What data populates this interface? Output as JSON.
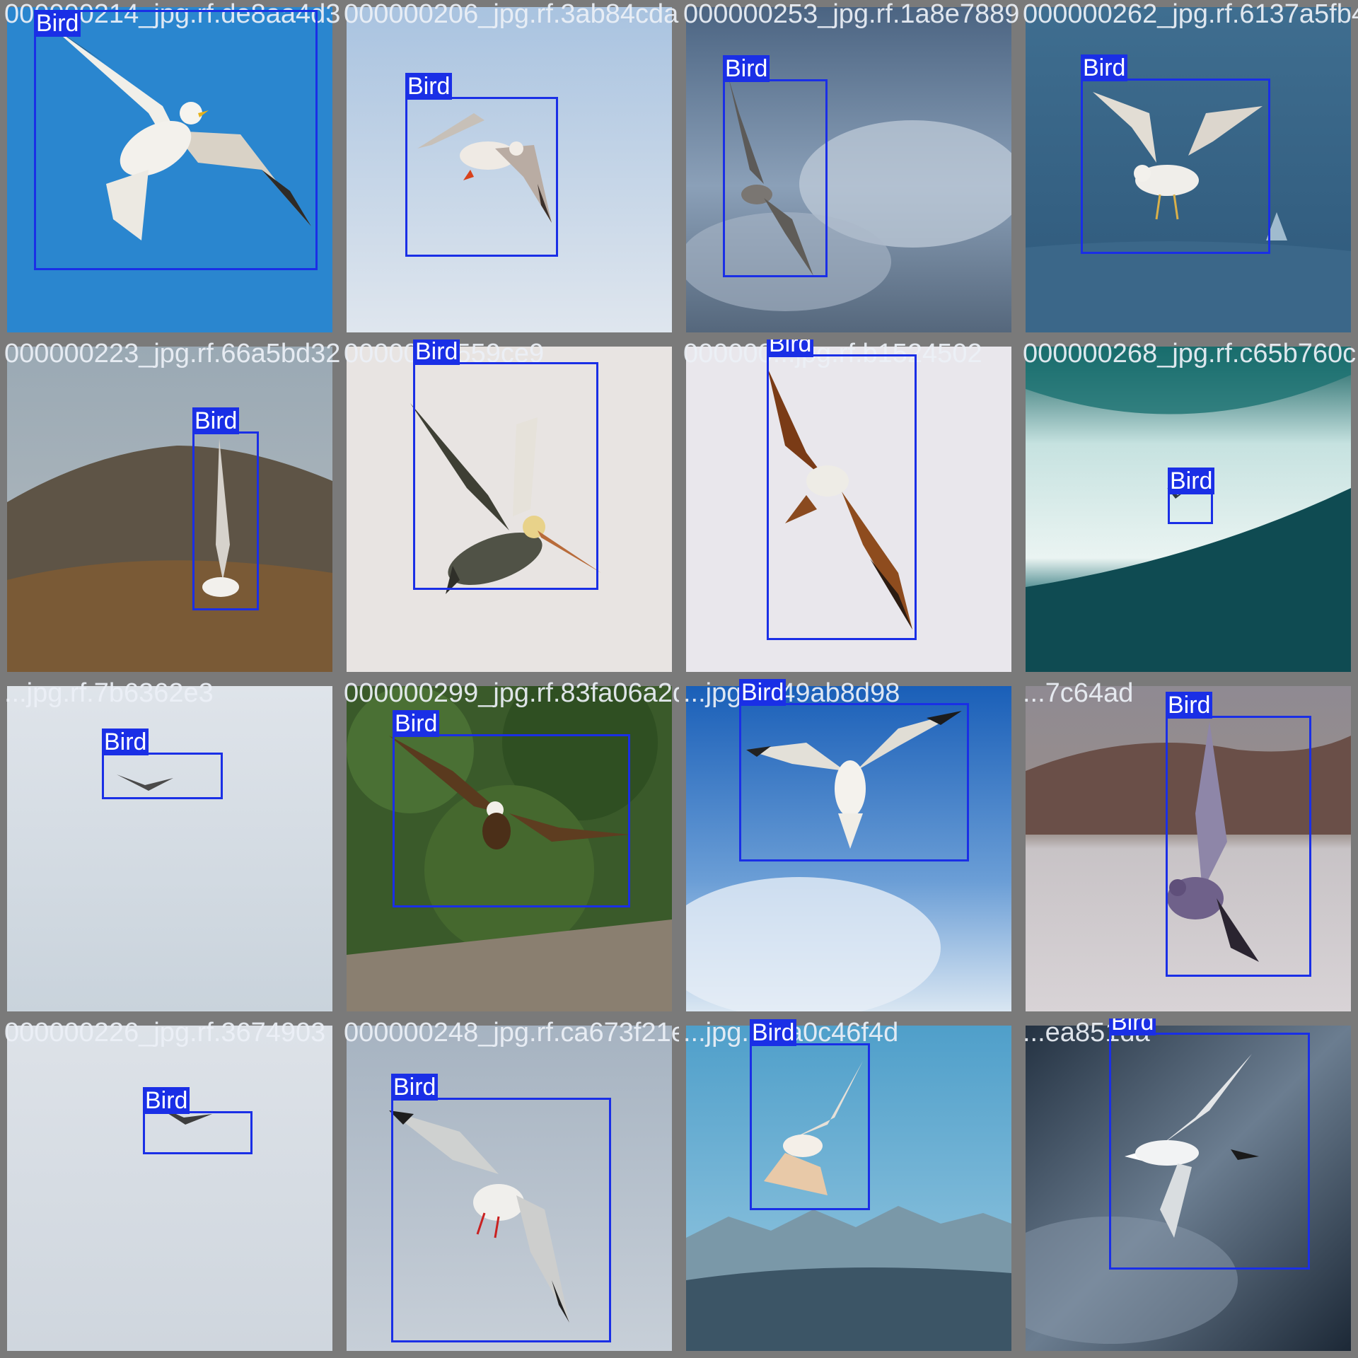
{
  "class_label": "Bird",
  "box_color": "#1a2fe6",
  "tiles": [
    {
      "filename": "000000214_jpg.rf.de8aa4d34",
      "label": "Bird",
      "scene": "bird-01-gull-blue-sky"
    },
    {
      "filename": "000000206_jpg.rf.3ab84cda9",
      "label": "Bird",
      "scene": "bird-02-gull-pale-sky"
    },
    {
      "filename": "000000253_jpg.rf.1a8e78899",
      "label": "Bird",
      "scene": "bird-03-hawk-clouds"
    },
    {
      "filename": "000000262_jpg.rf.6137a5fb4",
      "label": "Bird",
      "scene": "bird-04-gull-water"
    },
    {
      "filename": "000000223_jpg.rf.66a5bd32a",
      "label": "Bird",
      "scene": "bird-05-gull-hillside"
    },
    {
      "filename": "000000...559ce9",
      "label": "Bird",
      "scene": "bird-06-pelican"
    },
    {
      "filename": "000000...jpg.rf.b1524502",
      "label": "Bird",
      "scene": "bird-07-kite"
    },
    {
      "filename": "000000268_jpg.rf.c65b760c",
      "label": "Bird",
      "scene": "bird-08-wave"
    },
    {
      "filename": "...jpg.rf.7b6362e3",
      "label": "Bird",
      "scene": "bird-09-distant-grey-sky"
    },
    {
      "filename": "000000299_jpg.rf.83fa06a2d",
      "label": "Bird",
      "scene": "bird-10-eagle-trees"
    },
    {
      "filename": "...jpg.rf.f49ab8d98",
      "label": "Bird",
      "scene": "bird-11-gull-overhead"
    },
    {
      "filename": "...7c64ad",
      "label": "Bird",
      "scene": "bird-12-pigeon-lake"
    },
    {
      "filename": "000000226_jpg.rf.3674903",
      "label": "Bird",
      "scene": "bird-13-distant-pale-sky"
    },
    {
      "filename": "000000248_jpg.rf.ca673f21ef",
      "label": "Bird",
      "scene": "bird-14-gull-grey"
    },
    {
      "filename": "...jpg.rf.6a0c46f4d",
      "label": "Bird",
      "scene": "bird-15-gull-mountains"
    },
    {
      "filename": "...ea851da",
      "label": "Bird",
      "scene": "bird-16-gull-dark-clouds"
    }
  ]
}
